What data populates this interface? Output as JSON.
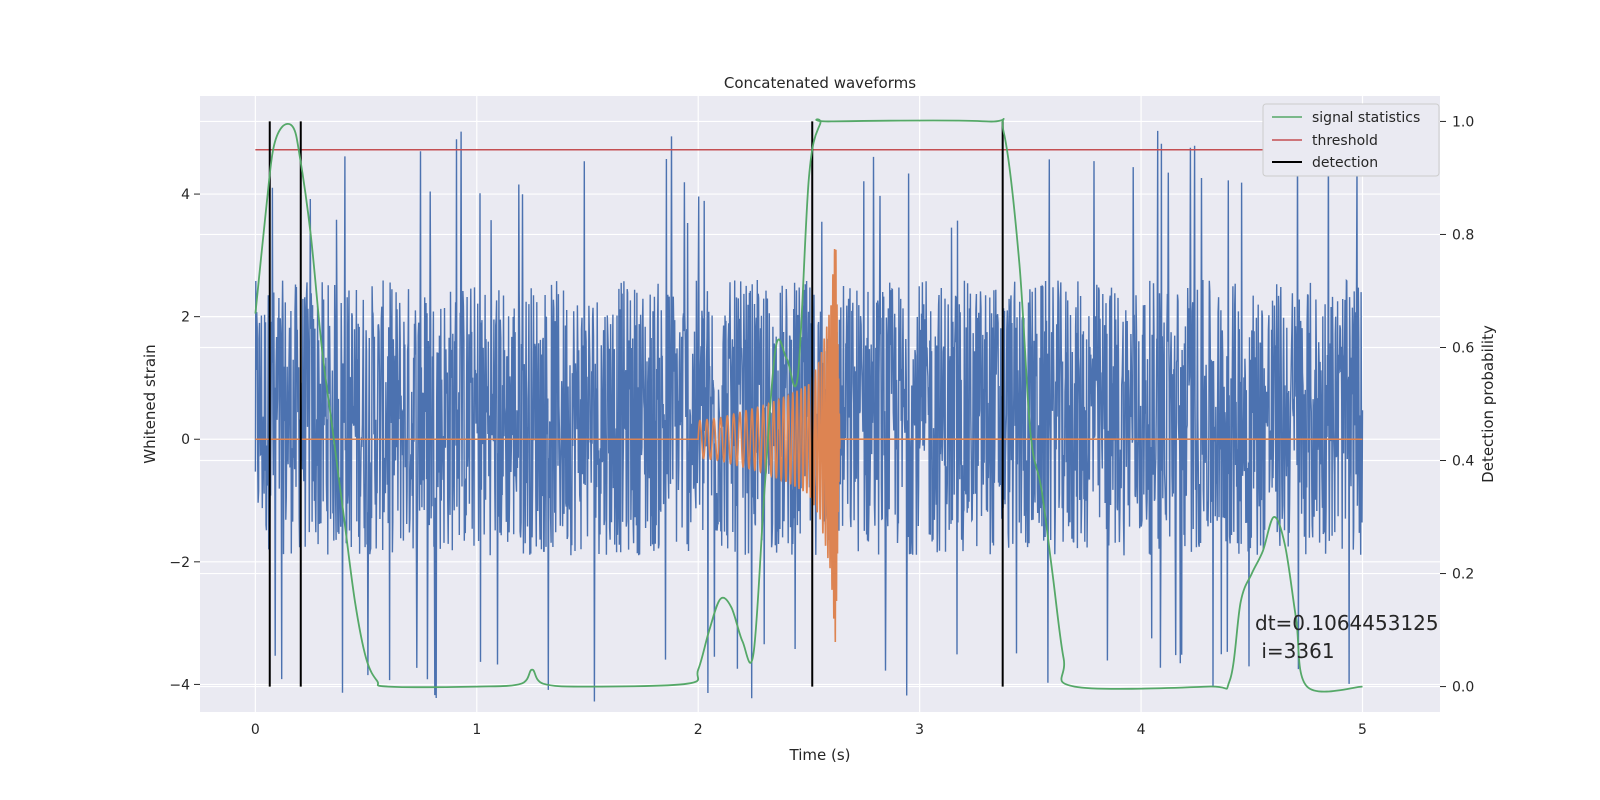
{
  "chart_data": {
    "type": "line",
    "title": "Concatenated waveforms",
    "xlabel": "Time (s)",
    "ylabel": "Whitened strain",
    "y2label": "Detection probability",
    "xlim": [
      -0.25,
      5.35
    ],
    "ylim": [
      -4.45,
      5.6
    ],
    "y2lim": [
      -0.045,
      1.045
    ],
    "xticks": [
      0,
      1,
      2,
      3,
      4,
      5
    ],
    "yticks": [
      -4,
      -2,
      0,
      2,
      4
    ],
    "y2ticks": [
      0.0,
      0.2,
      0.4,
      0.6,
      0.8,
      1.0
    ],
    "xticklabels": [
      "0",
      "1",
      "2",
      "3",
      "4",
      "5"
    ],
    "yticklabels": [
      "−4",
      "−2",
      "0",
      "2",
      "4"
    ],
    "y2ticklabels": [
      "0.0",
      "0.2",
      "0.4",
      "0.6",
      "0.8",
      "1.0"
    ],
    "grid": true,
    "background": "#eaeaf2",
    "legend_position": "top-right",
    "legend": [
      {
        "label": "signal statistics",
        "color": "#55a868"
      },
      {
        "label": "threshold",
        "color": "#c44e52"
      },
      {
        "label": "detection",
        "color": "#000000"
      }
    ],
    "strain_noise": {
      "color": "#4c72b0",
      "x_range": [
        0,
        5
      ],
      "band_low": -1.9,
      "band_high": 2.6,
      "peak_low": -4.3,
      "peak_high": 5.1
    },
    "injected_signal": {
      "color": "#dd8452",
      "baseline": 0,
      "chirp_start": 2.0,
      "merger_time": 2.62,
      "x": [
        2.0,
        2.1,
        2.2,
        2.3,
        2.4,
        2.5,
        2.55,
        2.6,
        2.62,
        2.64
      ],
      "amplitude": [
        0.3,
        0.35,
        0.45,
        0.55,
        0.7,
        0.9,
        1.3,
        2.2,
        3.4,
        0
      ]
    },
    "signal_statistics": {
      "color": "#55a868",
      "x": [
        0,
        0.05,
        0.08,
        0.12,
        0.17,
        0.2,
        0.25,
        0.3,
        0.35,
        0.4,
        0.45,
        0.5,
        0.55,
        0.6,
        1.0,
        1.2,
        1.25,
        1.3,
        1.5,
        1.95,
        2.0,
        2.05,
        2.1,
        2.15,
        2.2,
        2.25,
        2.3,
        2.35,
        2.4,
        2.45,
        2.5,
        2.55,
        2.6,
        3.3,
        3.38,
        3.45,
        3.5,
        3.55,
        3.6,
        3.65,
        3.7,
        4.3,
        4.4,
        4.45,
        4.5,
        4.55,
        4.6,
        4.65,
        4.7,
        4.75,
        5.0
      ],
      "y": [
        0.66,
        0.85,
        0.95,
        0.99,
        0.99,
        0.94,
        0.8,
        0.6,
        0.45,
        0.3,
        0.15,
        0.05,
        0.01,
        0.0,
        0.0,
        0.005,
        0.03,
        0.005,
        0.0,
        0.005,
        0.03,
        0.1,
        0.155,
        0.14,
        0.08,
        0.06,
        0.35,
        0.6,
        0.58,
        0.55,
        0.9,
        0.995,
        1.0,
        1.0,
        0.98,
        0.75,
        0.45,
        0.35,
        0.2,
        0.05,
        0.0,
        0.0,
        0.01,
        0.15,
        0.2,
        0.24,
        0.3,
        0.25,
        0.12,
        0.0,
        0.0
      ]
    },
    "threshold": {
      "value": 0.95,
      "x_range": [
        0,
        5
      ],
      "color": "#c44e52"
    },
    "detections": {
      "x": [
        0.065,
        0.205,
        2.515,
        3.375
      ],
      "color": "#000000"
    },
    "annotation": {
      "line1": "dt=0.1064453125",
      "line2": " i=3361"
    }
  }
}
